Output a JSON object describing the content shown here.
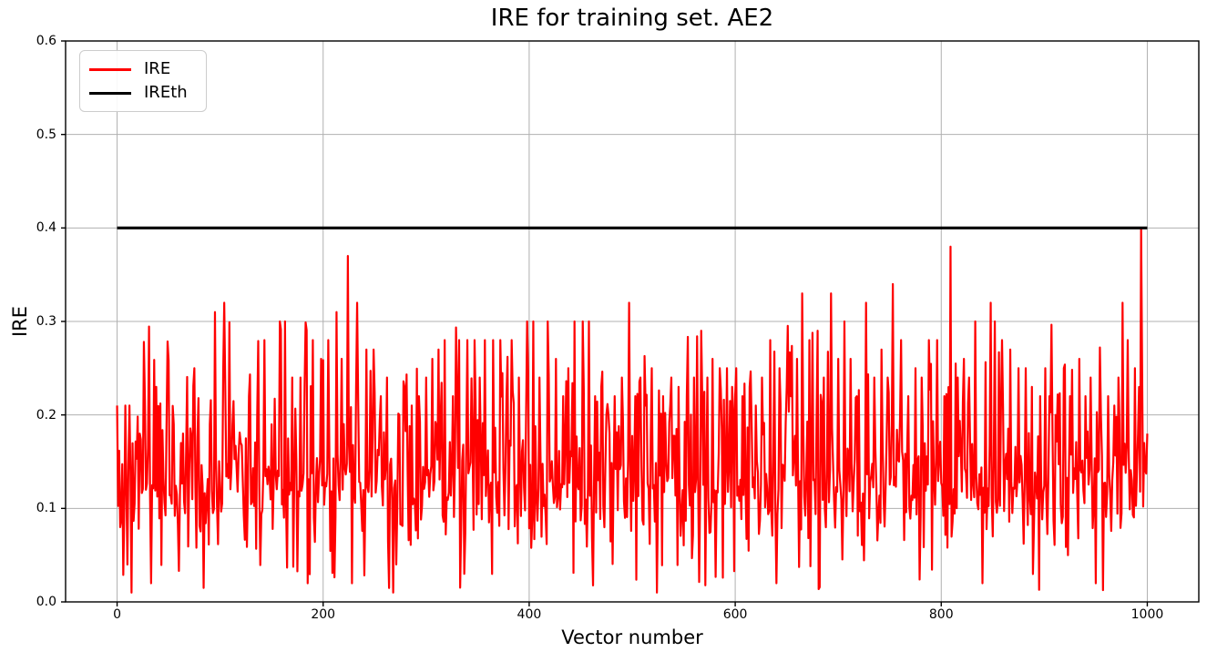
{
  "chart_data": {
    "type": "line",
    "title": "IRE for training set. AE2",
    "xlabel": "Vector number",
    "ylabel": "IRE",
    "xlim": [
      -50,
      1050
    ],
    "ylim": [
      0,
      0.6
    ],
    "xticks": [
      0,
      200,
      400,
      600,
      800,
      1000
    ],
    "xtick_labels": [
      "0",
      "200",
      "400",
      "600",
      "800",
      "1000"
    ],
    "yticks": [
      0.0,
      0.1,
      0.2,
      0.3,
      0.4,
      0.5,
      0.6
    ],
    "ytick_labels": [
      "0.0",
      "0.1",
      "0.2",
      "0.3",
      "0.4",
      "0.5",
      "0.6"
    ],
    "grid": true,
    "grid_color": "#b0b0b0",
    "spine_color": "#000000",
    "background": "#ffffff",
    "legend": {
      "position": "upper-left",
      "items": [
        {
          "label": "IRE",
          "color": "#ff0000"
        },
        {
          "label": "IREth",
          "color": "#000000"
        }
      ]
    },
    "series": [
      {
        "name": "IRE",
        "kind": "noisy-line",
        "color": "#ff0000",
        "line_width": 2.2,
        "n_points": 1001,
        "x_start": 0,
        "x_end": 1000,
        "value_range": [
          0.01,
          0.4
        ],
        "typical_band": [
          0.05,
          0.2
        ],
        "generator": {
          "seed": 42,
          "low_p": 0.05,
          "low": [
            0.01,
            0.05
          ],
          "base_p": 0.85,
          "base": [
            0.05,
            0.2
          ],
          "mid_p": 0.965,
          "mid": [
            0.19,
            0.25
          ],
          "high": [
            0.25,
            0.3
          ]
        },
        "anchor_points": [
          [
            0,
            0.21
          ],
          [
            3,
            0.08
          ],
          [
            8,
            0.21
          ],
          [
            10,
            0.04
          ],
          [
            12,
            0.21
          ],
          [
            14,
            0.01
          ],
          [
            22,
            0.18
          ],
          [
            33,
            0.02
          ],
          [
            38,
            0.23
          ],
          [
            48,
            0.19
          ],
          [
            55,
            0.19
          ],
          [
            62,
            0.17
          ],
          [
            75,
            0.25
          ],
          [
            84,
            0.015
          ],
          [
            90,
            0.19
          ],
          [
            95,
            0.31
          ],
          [
            104,
            0.32
          ],
          [
            112,
            0.19
          ],
          [
            120,
            0.17
          ],
          [
            128,
            0.22
          ],
          [
            136,
            0.2
          ],
          [
            143,
            0.28
          ],
          [
            150,
            0.19
          ],
          [
            158,
            0.3
          ],
          [
            163,
            0.3
          ],
          [
            170,
            0.24
          ],
          [
            178,
            0.24
          ],
          [
            185,
            0.02
          ],
          [
            190,
            0.28
          ],
          [
            198,
            0.26
          ],
          [
            205,
            0.28
          ],
          [
            213,
            0.31
          ],
          [
            218,
            0.26
          ],
          [
            224,
            0.37
          ],
          [
            228,
            0.02
          ],
          [
            233,
            0.32
          ],
          [
            242,
            0.27
          ],
          [
            249,
            0.27
          ],
          [
            256,
            0.22
          ],
          [
            262,
            0.24
          ],
          [
            268,
            0.01
          ],
          [
            274,
            0.2
          ],
          [
            279,
            0.23
          ],
          [
            286,
            0.21
          ],
          [
            293,
            0.22
          ],
          [
            300,
            0.24
          ],
          [
            306,
            0.26
          ],
          [
            312,
            0.27
          ],
          [
            318,
            0.28
          ],
          [
            326,
            0.22
          ],
          [
            332,
            0.28
          ],
          [
            337,
            0.03
          ],
          [
            340,
            0.28
          ],
          [
            347,
            0.28
          ],
          [
            352,
            0.24
          ],
          [
            357,
            0.28
          ],
          [
            365,
            0.28
          ],
          [
            372,
            0.28
          ],
          [
            378,
            0.22
          ],
          [
            383,
            0.28
          ],
          [
            390,
            0.24
          ],
          [
            398,
            0.3
          ],
          [
            404,
            0.3
          ],
          [
            410,
            0.24
          ],
          [
            418,
            0.3
          ],
          [
            426,
            0.26
          ],
          [
            433,
            0.22
          ],
          [
            438,
            0.25
          ],
          [
            444,
            0.3
          ],
          [
            452,
            0.3
          ],
          [
            458,
            0.3
          ],
          [
            464,
            0.22
          ],
          [
            470,
            0.23
          ],
          [
            477,
            0.2
          ],
          [
            483,
            0.22
          ],
          [
            490,
            0.24
          ],
          [
            497,
            0.32
          ],
          [
            503,
            0.22
          ],
          [
            508,
            0.24
          ],
          [
            513,
            0.21
          ],
          [
            519,
            0.25
          ],
          [
            524,
            0.01
          ],
          [
            530,
            0.22
          ],
          [
            538,
            0.24
          ],
          [
            545,
            0.23
          ],
          [
            553,
            0.22
          ],
          [
            560,
            0.24
          ],
          [
            567,
            0.29
          ],
          [
            573,
            0.24
          ],
          [
            578,
            0.26
          ],
          [
            585,
            0.25
          ],
          [
            592,
            0.25
          ],
          [
            597,
            0.23
          ],
          [
            601,
            0.25
          ],
          [
            607,
            0.22
          ],
          [
            614,
            0.23
          ],
          [
            620,
            0.21
          ],
          [
            626,
            0.24
          ],
          [
            634,
            0.28
          ],
          [
            640,
            0.02
          ],
          [
            643,
            0.25
          ],
          [
            650,
            0.23
          ],
          [
            654,
            0.22
          ],
          [
            660,
            0.26
          ],
          [
            665,
            0.33
          ],
          [
            672,
            0.28
          ],
          [
            680,
            0.29
          ],
          [
            686,
            0.24
          ],
          [
            693,
            0.33
          ],
          [
            700,
            0.26
          ],
          [
            706,
            0.3
          ],
          [
            712,
            0.26
          ],
          [
            718,
            0.22
          ],
          [
            727,
            0.32
          ],
          [
            735,
            0.24
          ],
          [
            742,
            0.27
          ],
          [
            748,
            0.24
          ],
          [
            753,
            0.34
          ],
          [
            761,
            0.28
          ],
          [
            768,
            0.22
          ],
          [
            775,
            0.25
          ],
          [
            781,
            0.24
          ],
          [
            788,
            0.28
          ],
          [
            796,
            0.28
          ],
          [
            803,
            0.22
          ],
          [
            809,
            0.38
          ],
          [
            816,
            0.24
          ],
          [
            822,
            0.26
          ],
          [
            827,
            0.24
          ],
          [
            833,
            0.3
          ],
          [
            840,
            0.02
          ],
          [
            848,
            0.32
          ],
          [
            852,
            0.3
          ],
          [
            859,
            0.28
          ],
          [
            867,
            0.27
          ],
          [
            875,
            0.25
          ],
          [
            882,
            0.25
          ],
          [
            888,
            0.23
          ],
          [
            896,
            0.22
          ],
          [
            901,
            0.25
          ],
          [
            905,
            0.22
          ],
          [
            911,
            0.2
          ],
          [
            919,
            0.25
          ],
          [
            925,
            0.22
          ],
          [
            934,
            0.26
          ],
          [
            940,
            0.22
          ],
          [
            945,
            0.24
          ],
          [
            950,
            0.02
          ],
          [
            955,
            0.2
          ],
          [
            962,
            0.22
          ],
          [
            968,
            0.21
          ],
          [
            972,
            0.24
          ],
          [
            976,
            0.32
          ],
          [
            981,
            0.28
          ],
          [
            988,
            0.25
          ],
          [
            991,
            0.18
          ],
          [
            994,
            0.4
          ],
          [
            997,
            0.17
          ],
          [
            1000,
            0.18
          ]
        ]
      },
      {
        "name": "IREth",
        "kind": "hline",
        "color": "#000000",
        "line_width": 3.2,
        "y": 0.4,
        "x_start": 0,
        "x_end": 1000
      }
    ]
  }
}
